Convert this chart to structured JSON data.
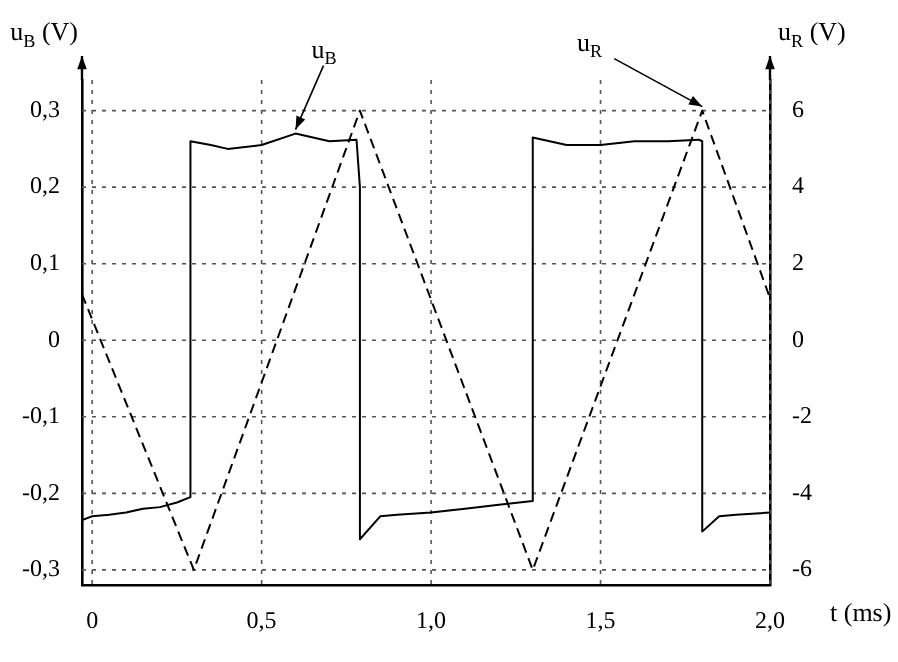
{
  "chart_data": {
    "type": "line",
    "xlabel": "t (ms)",
    "ylabel": "u$_{B}$ (V)",
    "y2label": "u$_{R}$ (V)",
    "x": [
      -0.03,
      0.0,
      0.05,
      0.1,
      0.15,
      0.2,
      0.25,
      0.29,
      0.29,
      0.35,
      0.4,
      0.5,
      0.6,
      0.7,
      0.78,
      0.79,
      0.79,
      0.85,
      0.9,
      1.0,
      1.1,
      1.2,
      1.3,
      1.3,
      1.4,
      1.5,
      1.6,
      1.7,
      1.79,
      1.8,
      1.8,
      1.85,
      1.9,
      2.0
    ],
    "series": [
      {
        "name": "u$_{B}$",
        "color": "#000000",
        "values": [
          -0.235,
          -0.23,
          -0.228,
          -0.225,
          -0.22,
          -0.218,
          -0.212,
          -0.205,
          0.26,
          0.255,
          0.25,
          0.255,
          0.27,
          0.26,
          0.262,
          0.2,
          -0.26,
          -0.23,
          -0.228,
          -0.225,
          -0.22,
          -0.215,
          -0.21,
          0.265,
          0.255,
          0.255,
          0.26,
          0.26,
          0.262,
          0.26,
          -0.25,
          -0.23,
          -0.228,
          -0.225
        ],
        "line_style": "solid"
      },
      {
        "name": "u$_{R}$",
        "color": "#000000",
        "axis": "y2",
        "x": [
          -0.03,
          0.3,
          0.79,
          1.3,
          1.8,
          2.0
        ],
        "values": [
          1.2,
          -6,
          6,
          -6,
          6,
          1.1
        ],
        "line_style": "dashed"
      }
    ],
    "xlim": [
      -0.03,
      2.0
    ],
    "xticks": [
      0,
      {
        "value": 0.5,
        "label": "0,5"
      },
      {
        "value": 1.0,
        "label": "1,0"
      },
      {
        "value": 1.5,
        "label": "1,5"
      },
      {
        "value": 2.0,
        "label": "2,0"
      }
    ],
    "ylim": [
      -0.32,
      0.34
    ],
    "yticks": [
      {
        "value": -0.3,
        "label": "-0,3"
      },
      {
        "value": -0.2,
        "label": "-0,2"
      },
      {
        "value": -0.1,
        "label": "-0,1"
      },
      0,
      {
        "value": 0.1,
        "label": "0,1"
      },
      {
        "value": 0.2,
        "label": "0,2"
      },
      {
        "value": 0.3,
        "label": "0,3"
      }
    ],
    "y2lim": [
      -6.4,
      6.8
    ],
    "y2ticks": [
      -6,
      -4,
      -2,
      0,
      2,
      4,
      6
    ],
    "grid": true,
    "legend": false,
    "marker": "none"
  }
}
